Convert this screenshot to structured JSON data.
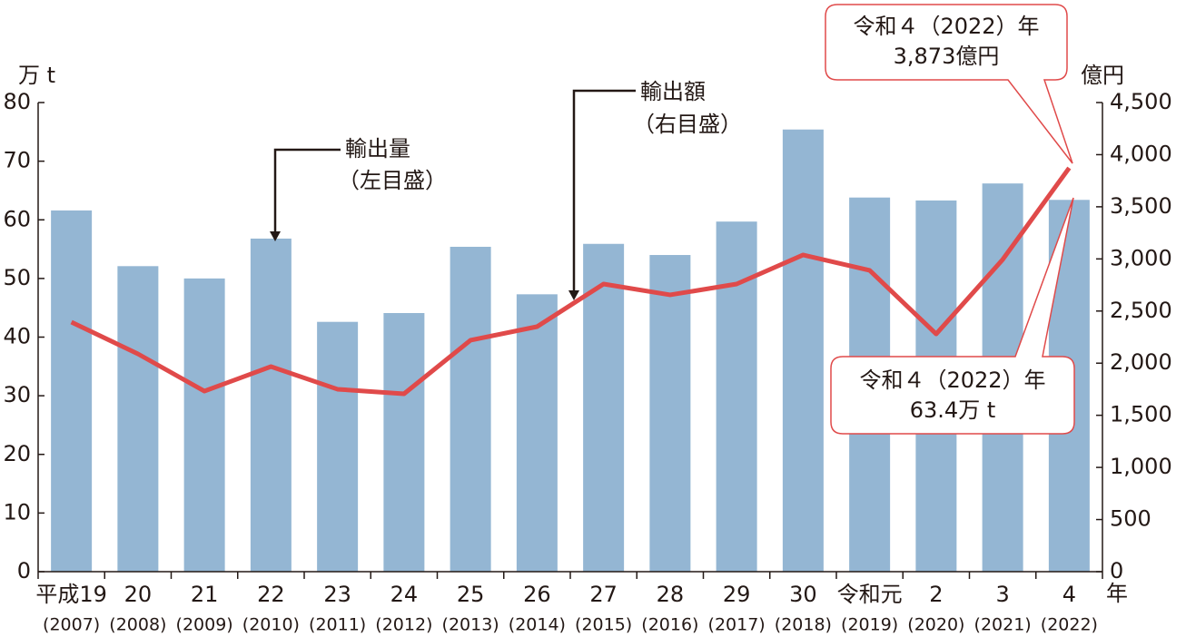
{
  "chart_data": {
    "type": "bar_line",
    "y_label": "万 t",
    "y2_label": "億円",
    "x_unit": "年",
    "categories": [
      "平成19",
      "20",
      "21",
      "22",
      "23",
      "24",
      "25",
      "26",
      "27",
      "28",
      "29",
      "30",
      "令和元",
      "2",
      "3",
      "4"
    ],
    "x_sublabels": [
      "(2007)",
      "(2008)",
      "(2009)",
      "(2010)",
      "(2011)",
      "(2012)",
      "(2013)",
      "(2014)",
      "(2015)",
      "(2016)",
      "(2017)",
      "(2018)",
      "(2019)",
      "(2020)",
      "(2021)",
      "(2022)"
    ],
    "series": [
      {
        "name": "輸出量",
        "type": "bar",
        "color": "#94b6d3",
        "axis": "y",
        "values": [
          61.6,
          52.1,
          50.0,
          56.8,
          42.6,
          44.1,
          55.4,
          47.3,
          55.9,
          54.0,
          59.7,
          75.4,
          63.8,
          63.3,
          66.2,
          63.4
        ]
      },
      {
        "name": "輸出額",
        "type": "line",
        "color": "#e04a4a",
        "axis": "y2",
        "values": [
          2394,
          2089,
          1732,
          1967,
          1750,
          1706,
          2220,
          2350,
          2759,
          2655,
          2759,
          3038,
          2890,
          2280,
          2994,
          3873
        ]
      }
    ],
    "ylim": [
      0,
      80
    ],
    "yticks": [
      0,
      10,
      20,
      30,
      40,
      50,
      60,
      70,
      80
    ],
    "y2lim": [
      0,
      4500
    ],
    "y2ticks": [
      0,
      500,
      {
        "value": 1000,
        "label": "1,000"
      },
      {
        "value": 1500,
        "label": "1,500"
      },
      {
        "value": 2000,
        "label": "2,000"
      },
      {
        "value": 2500,
        "label": "2,500"
      },
      {
        "value": 3000,
        "label": "3,000"
      },
      {
        "value": 3500,
        "label": "3,500"
      },
      {
        "value": 4000,
        "label": "4,000"
      },
      {
        "value": 4500,
        "label": "4,500"
      }
    ],
    "annotations": [
      {
        "lines": [
          "輸出量",
          "（左目盛）"
        ]
      },
      {
        "lines": [
          "輸出額",
          "（右目盛）"
        ]
      },
      {
        "lines": [
          "令和４（2022）年",
          "3,873億円"
        ]
      },
      {
        "lines": [
          "令和４（2022）年",
          "63.4万 t"
        ]
      }
    ]
  }
}
